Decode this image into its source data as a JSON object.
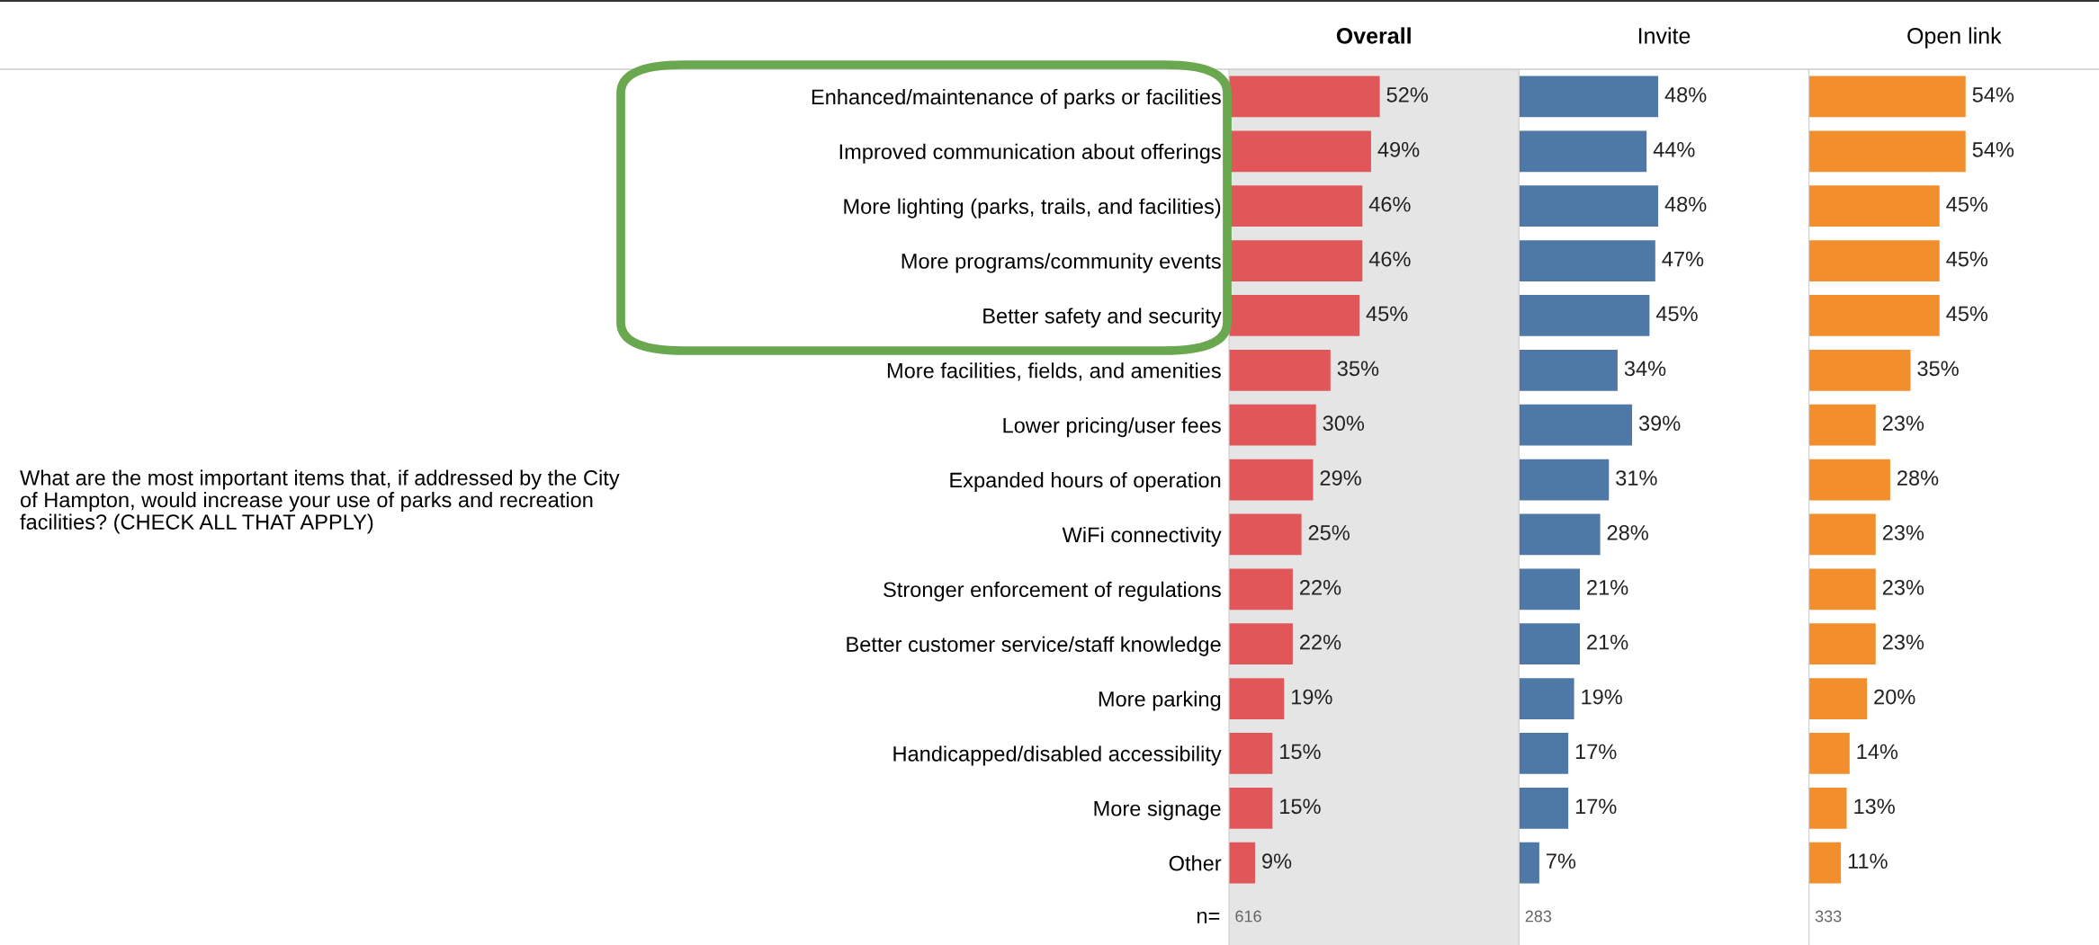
{
  "chart_data": [
    {
      "type": "bar",
      "orientation": "horizontal",
      "title": "Overall",
      "categories": [
        "Enhanced/maintenance of parks or facilities",
        "Improved communication about offerings",
        "More lighting (parks, trails, and facilities)",
        "More programs/community events",
        "Better safety and security",
        "More facilities, fields, and amenities",
        "Lower pricing/user fees",
        "Expanded hours of operation",
        "WiFi connectivity",
        "Stronger enforcement of regulations",
        "Better customer service/staff knowledge",
        "More parking",
        "Handicapped/disabled accessibility",
        "More signage",
        "Other"
      ],
      "series": [
        {
          "color": "#e15759",
          "values": [
            52,
            49,
            46,
            46,
            45,
            35,
            30,
            29,
            25,
            22,
            22,
            19,
            15,
            15,
            9
          ],
          "value_labels": [
            "52%",
            "49%",
            "46%",
            "46%",
            "45%",
            "35%",
            "30%",
            "29%",
            "25%",
            "22%",
            "22%",
            "19%",
            "15%",
            "15%",
            "9%"
          ]
        }
      ],
      "xlim": [
        0,
        100
      ],
      "tick_labels": "y",
      "bands": [
        {
          "axis": "x",
          "from": 0,
          "to": 100,
          "color": "#e5e5e5"
        }
      ],
      "annotations": [
        "What are the most important items that, if addressed by the City of Hampton, would increase your use of parks and recreation facilities? (CHECK ALL THAT APPLY)",
        "n=",
        "616"
      ]
    },
    {
      "type": "bar",
      "orientation": "horizontal",
      "title": "Invite",
      "series": [
        {
          "color": "#4e79a7",
          "values": [
            48,
            44,
            48,
            47,
            45,
            34,
            39,
            31,
            28,
            21,
            21,
            19,
            17,
            17,
            7
          ],
          "value_labels": [
            "48%",
            "44%",
            "48%",
            "47%",
            "45%",
            "34%",
            "39%",
            "31%",
            "28%",
            "21%",
            "21%",
            "19%",
            "17%",
            "17%",
            "7%"
          ]
        }
      ],
      "xlim": [
        0,
        100
      ],
      "tick_labels": false,
      "annotations": [
        "283"
      ]
    },
    {
      "type": "bar",
      "orientation": "horizontal",
      "title": "Open link",
      "series": [
        {
          "color": "#f28e2b",
          "values": [
            54,
            54,
            45,
            45,
            45,
            35,
            23,
            28,
            23,
            23,
            23,
            20,
            14,
            13,
            11
          ],
          "value_labels": [
            "54%",
            "54%",
            "45%",
            "45%",
            "45%",
            "35%",
            "23%",
            "28%",
            "23%",
            "23%",
            "23%",
            "20%",
            "14%",
            "13%",
            "11%"
          ]
        }
      ],
      "xlim": [
        0,
        100
      ],
      "tick_labels": false,
      "annotations": [
        "333"
      ]
    }
  ]
}
